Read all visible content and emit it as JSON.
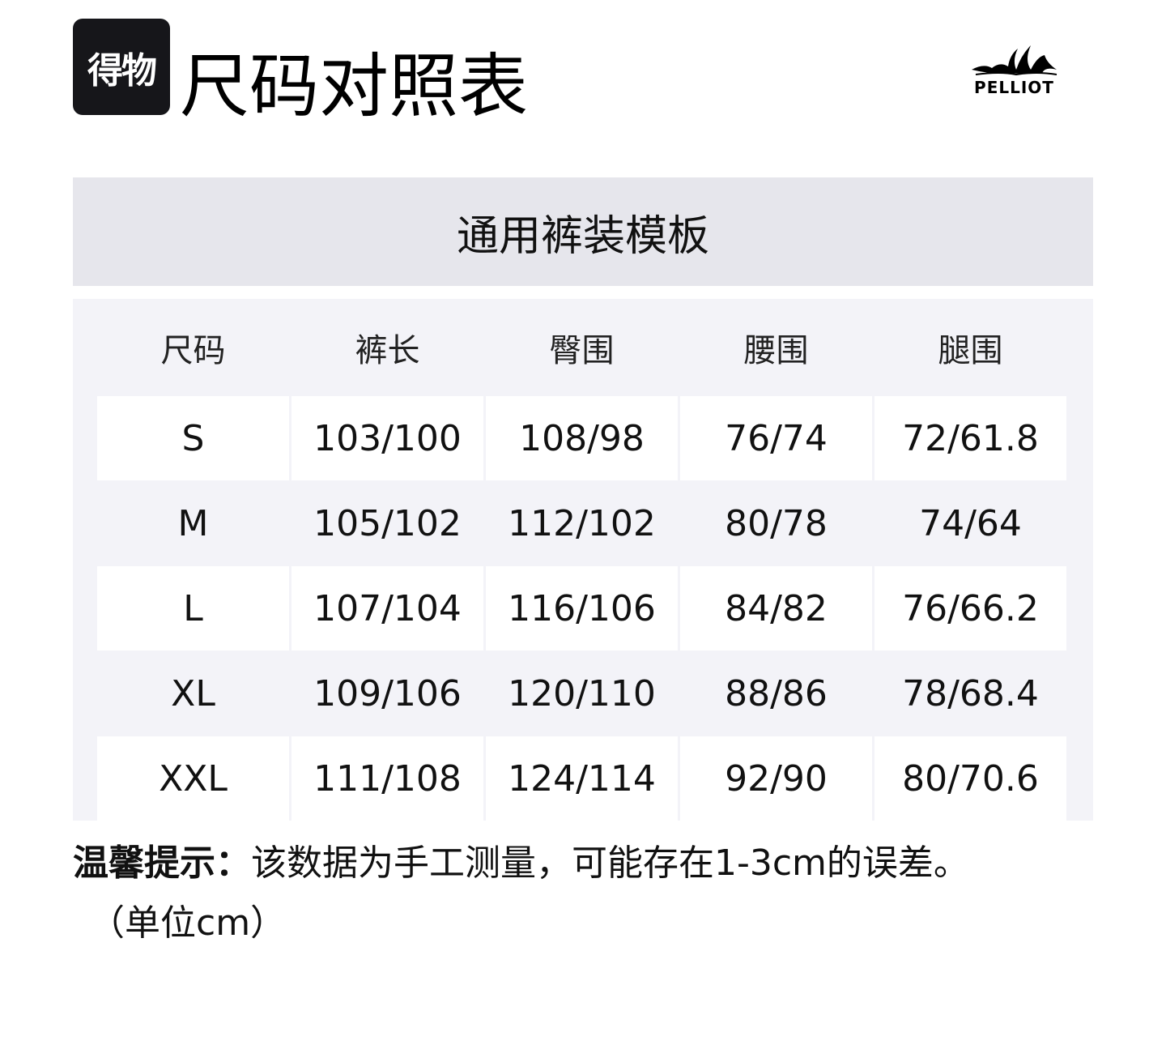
{
  "header": {
    "badge_text": "得物",
    "title": "尺码对照表",
    "brand_logo": "PELLIOT"
  },
  "template_title": "通用裤装模板",
  "table": {
    "columns": [
      "尺码",
      "裤长",
      "臀围",
      "腰围",
      "腿围"
    ],
    "rows": [
      [
        "S",
        "103/100",
        "108/98",
        "76/74",
        "72/61.8"
      ],
      [
        "M",
        "105/102",
        "112/102",
        "80/78",
        "74/64"
      ],
      [
        "L",
        "107/104",
        "116/106",
        "84/82",
        "76/66.2"
      ],
      [
        "XL",
        "109/106",
        "120/110",
        "88/86",
        "78/68.4"
      ],
      [
        "XXL",
        "111/108",
        "124/114",
        "92/90",
        "80/70.6"
      ]
    ]
  },
  "note": {
    "label": "温馨提示：",
    "text": "该数据为手工测量，可能存在1-3cm的误差。",
    "unit": "（单位cm）"
  },
  "colors": {
    "band": "#e6e6ec",
    "table_bg": "#f3f3f8",
    "badge": "#16161a"
  }
}
